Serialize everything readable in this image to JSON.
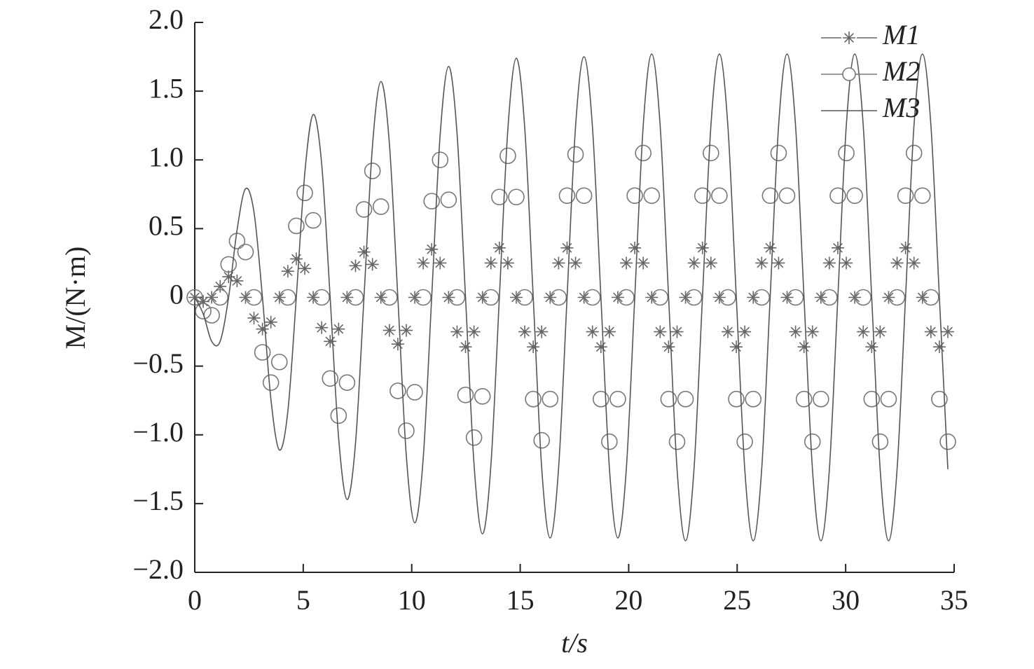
{
  "chart_data": {
    "type": "line",
    "xlabel": "t/s",
    "ylabel": "M/(N·m)",
    "x": [
      0,
      0.39,
      0.78,
      1.17,
      1.56,
      1.95,
      2.34,
      2.73,
      3.12,
      3.51,
      3.9,
      4.29,
      4.68,
      5.07,
      5.46,
      5.85,
      6.24,
      6.63,
      7.02,
      7.41,
      7.8,
      8.19,
      8.58,
      8.97,
      9.36,
      9.75,
      10.14,
      10.53,
      10.92,
      11.31,
      11.7,
      12.09,
      12.48,
      12.87,
      13.26,
      13.65,
      14.04,
      14.43,
      14.82,
      15.21,
      15.6,
      15.99,
      16.38,
      16.77,
      17.16,
      17.55,
      17.94,
      18.33,
      18.72,
      19.11,
      19.5,
      19.89,
      20.28,
      20.67,
      21.06,
      21.45,
      21.84,
      22.23,
      22.62,
      23.01,
      23.4,
      23.79,
      24.18,
      24.57,
      24.96,
      25.35,
      25.74,
      26.13,
      26.52,
      26.91,
      27.3,
      27.69,
      28.08,
      28.47,
      28.86,
      29.25,
      29.64,
      30.03,
      30.42,
      30.81,
      31.2,
      31.59,
      31.98,
      32.37,
      32.76,
      33.15,
      33.54,
      33.93,
      34.32,
      34.71
    ],
    "series": [
      {
        "name": "M1",
        "color": "#666666",
        "marker": "asterisk",
        "values": [
          0,
          -0.03,
          0,
          0.08,
          0.15,
          0.12,
          0,
          -0.15,
          -0.23,
          -0.18,
          0,
          0.19,
          0.28,
          0.21,
          0,
          -0.22,
          -0.32,
          -0.23,
          0,
          0.23,
          0.33,
          0.24,
          0,
          -0.24,
          -0.34,
          -0.24,
          0,
          0.25,
          0.35,
          0.25,
          0,
          -0.25,
          -0.36,
          -0.25,
          0,
          0.25,
          0.36,
          0.25,
          0,
          -0.25,
          -0.36,
          -0.25,
          0,
          0.25,
          0.36,
          0.25,
          0,
          -0.25,
          -0.36,
          -0.25,
          0,
          0.25,
          0.36,
          0.25,
          0,
          -0.25,
          -0.36,
          -0.25,
          0,
          0.25,
          0.36,
          0.25,
          0,
          -0.25,
          -0.36,
          -0.25,
          0,
          0.25,
          0.36,
          0.25,
          0,
          -0.25,
          -0.36,
          -0.25,
          0,
          0.25,
          0.36,
          0.25,
          0,
          -0.25,
          -0.36,
          -0.25,
          0,
          0.25,
          0.36,
          0.25,
          0,
          -0.25,
          -0.36,
          -0.25
        ]
      },
      {
        "name": "M2",
        "color": "#777777",
        "marker": "circle",
        "values": [
          0,
          -0.1,
          -0.13,
          0,
          0.24,
          0.41,
          0.33,
          0,
          -0.4,
          -0.62,
          -0.47,
          0,
          0.52,
          0.76,
          0.56,
          0,
          -0.59,
          -0.86,
          -0.62,
          0,
          0.64,
          0.92,
          0.66,
          0,
          -0.68,
          -0.97,
          -0.69,
          0,
          0.7,
          1.0,
          0.71,
          0,
          -0.71,
          -1.02,
          -0.72,
          0,
          0.73,
          1.03,
          0.73,
          0,
          -0.74,
          -1.04,
          -0.74,
          0,
          0.74,
          1.04,
          0.74,
          0,
          -0.74,
          -1.05,
          -0.74,
          0,
          0.74,
          1.05,
          0.74,
          0,
          -0.74,
          -1.05,
          -0.74,
          0,
          0.74,
          1.05,
          0.74,
          0,
          -0.74,
          -1.05,
          -0.74,
          0,
          0.74,
          1.05,
          0.74,
          0,
          -0.74,
          -1.05,
          -0.74,
          0,
          0.74,
          1.05,
          0.74,
          0,
          -0.74,
          -1.05,
          -0.74,
          0,
          0.74,
          1.05,
          0.74,
          0,
          -0.74,
          -1.05
        ]
      },
      {
        "name": "M3",
        "color": "#555555",
        "marker": "none",
        "values": [
          0,
          -0.12,
          -0.32,
          -0.32,
          0,
          0.49,
          0.79,
          0.62,
          0,
          -0.74,
          -1.11,
          -0.83,
          0,
          0.9,
          1.33,
          0.97,
          0,
          -1.02,
          -1.47,
          -1.06,
          0,
          1.1,
          1.57,
          1.12,
          0,
          -1.15,
          -1.64,
          -1.17,
          0,
          1.18,
          1.68,
          1.19,
          0,
          -1.21,
          -1.72,
          -1.22,
          0,
          1.22,
          1.74,
          1.23,
          0,
          -1.24,
          -1.75,
          -1.24,
          0,
          1.24,
          1.75,
          1.24,
          0,
          -1.24,
          -1.75,
          -1.25,
          0,
          1.25,
          1.77,
          1.25,
          0,
          -1.25,
          -1.77,
          -1.25,
          0,
          1.25,
          1.77,
          1.25,
          0,
          -1.25,
          -1.77,
          -1.25,
          0,
          1.25,
          1.77,
          1.25,
          0,
          -1.25,
          -1.77,
          -1.25,
          0,
          1.25,
          1.77,
          1.25,
          0,
          -1.25,
          -1.77,
          -1.25,
          0,
          1.25,
          1.77,
          1.25,
          0,
          -1.25
        ]
      }
    ],
    "xlim": [
      0,
      35
    ],
    "xticks": [
      0,
      5,
      10,
      15,
      20,
      25,
      30,
      35
    ],
    "ylim": [
      -2,
      2
    ],
    "yticks": [
      {
        "value": -2,
        "label": "−2.0"
      },
      {
        "value": -1.5,
        "label": "−1.5"
      },
      {
        "value": -1,
        "label": "−1.0"
      },
      {
        "value": -0.5,
        "label": "−0.5"
      },
      0,
      {
        "value": 0.5,
        "label": "0.5"
      },
      {
        "value": 1,
        "label": "1.0"
      },
      {
        "value": 1.5,
        "label": "1.5"
      },
      {
        "value": 2,
        "label": "2.0"
      }
    ],
    "grid": false,
    "legend": "upper right"
  }
}
